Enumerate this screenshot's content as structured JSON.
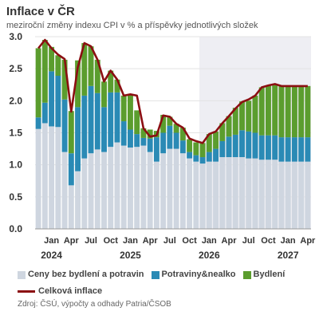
{
  "title": "Inflace v ČR",
  "subtitle": "meziroční změny indexu CPI v % a příspěvky jednotlivých složek",
  "source": "Zdroj: ČSÚ, výpočty a odhady Patria/ČSOB",
  "colors": {
    "ceny": "#cfd6e0",
    "potraviny": "#2a8ab5",
    "bydleni": "#5b9d2e",
    "celkova": "#8b0f12",
    "forecast_shade": "#eeeef3"
  },
  "chart_data": {
    "type": "bar",
    "stacked": true,
    "forecast_start": "2025-12",
    "ylim": [
      0,
      3.0
    ],
    "yticks": [
      "0.0",
      "0.5",
      "1.0",
      "1.5",
      "2.0",
      "2.5",
      "3.0"
    ],
    "grid": true,
    "legend_position": "bottom",
    "x": [
      "2023-11",
      "2023-12",
      "2024-01",
      "2024-02",
      "2024-03",
      "2024-04",
      "2024-05",
      "2024-06",
      "2024-07",
      "2024-08",
      "2024-09",
      "2024-10",
      "2024-11",
      "2024-12",
      "2025-01",
      "2025-02",
      "2025-03",
      "2025-04",
      "2025-05",
      "2025-06",
      "2025-07",
      "2025-08",
      "2025-09",
      "2025-10",
      "2025-11",
      "2025-12",
      "2026-01",
      "2026-02",
      "2026-03",
      "2026-04",
      "2026-05",
      "2026-06",
      "2026-07",
      "2026-08",
      "2026-09",
      "2026-10",
      "2026-11",
      "2026-12",
      "2027-01",
      "2027-02",
      "2027-03",
      "2027-04"
    ],
    "x_month_labels": [
      {
        "x": "2024-01",
        "label": "Jan"
      },
      {
        "x": "2024-04",
        "label": "Apr"
      },
      {
        "x": "2024-07",
        "label": "Jul"
      },
      {
        "x": "2024-10",
        "label": "Oct"
      },
      {
        "x": "2025-01",
        "label": "Jan"
      },
      {
        "x": "2025-04",
        "label": "Apr"
      },
      {
        "x": "2025-07",
        "label": "Jul"
      },
      {
        "x": "2025-10",
        "label": "Oct"
      },
      {
        "x": "2026-01",
        "label": "Jan"
      },
      {
        "x": "2026-04",
        "label": "Apr"
      },
      {
        "x": "2026-07",
        "label": "Jul"
      },
      {
        "x": "2026-10",
        "label": "Oct"
      },
      {
        "x": "2027-01",
        "label": "Jan"
      },
      {
        "x": "2027-04",
        "label": "Apr"
      }
    ],
    "x_year_labels": [
      {
        "x": "2024-01",
        "label": "2024"
      },
      {
        "x": "2025-01",
        "label": "2025"
      },
      {
        "x": "2026-01",
        "label": "2026"
      },
      {
        "x": "2027-01",
        "label": "2027"
      }
    ],
    "series": [
      {
        "name": "Ceny bez bydlení a potravin",
        "key": "ceny",
        "kind": "bar",
        "values": [
          1.56,
          1.65,
          1.6,
          1.59,
          1.2,
          0.68,
          0.9,
          1.1,
          1.18,
          1.24,
          1.2,
          1.28,
          1.35,
          1.3,
          1.27,
          1.28,
          1.3,
          1.2,
          1.05,
          1.18,
          1.25,
          1.25,
          1.18,
          1.1,
          1.05,
          1.02,
          1.05,
          1.05,
          1.12,
          1.12,
          1.12,
          1.12,
          1.1,
          1.1,
          1.08,
          1.08,
          1.08,
          1.05,
          1.05,
          1.05,
          1.05,
          1.05
        ]
      },
      {
        "name": "Potraviny&nealko",
        "key": "potraviny",
        "kind": "bar",
        "values": [
          0.18,
          0.32,
          0.86,
          0.8,
          0.82,
          0.5,
          1.0,
          0.98,
          1.05,
          0.88,
          0.7,
          0.85,
          0.78,
          0.38,
          0.28,
          0.2,
          0.12,
          0.21,
          0.38,
          0.32,
          0.36,
          0.25,
          0.2,
          0.1,
          0.1,
          0.1,
          0.15,
          0.2,
          0.25,
          0.32,
          0.35,
          0.42,
          0.42,
          0.4,
          0.38,
          0.38,
          0.38,
          0.38,
          0.38,
          0.38,
          0.38,
          0.38
        ]
      },
      {
        "name": "Bydlení",
        "key": "bydleni",
        "kind": "bar",
        "values": [
          1.08,
          0.98,
          0.38,
          0.32,
          0.62,
          0.66,
          0.73,
          0.82,
          0.62,
          0.52,
          0.4,
          0.34,
          0.2,
          0.4,
          0.55,
          0.37,
          0.15,
          0.14,
          0.1,
          0.28,
          0.14,
          0.14,
          0.2,
          0.2,
          0.2,
          0.22,
          0.28,
          0.27,
          0.28,
          0.32,
          0.42,
          0.45,
          0.48,
          0.58,
          0.75,
          0.78,
          0.8,
          0.8,
          0.8,
          0.8,
          0.8,
          0.8
        ]
      },
      {
        "name": "Celková inflace",
        "key": "celkova",
        "kind": "line",
        "values": [
          2.82,
          2.95,
          2.82,
          2.72,
          2.65,
          1.83,
          2.52,
          2.9,
          2.85,
          2.64,
          2.3,
          2.47,
          2.33,
          2.08,
          2.1,
          2.08,
          1.57,
          1.44,
          1.46,
          1.77,
          1.75,
          1.64,
          1.58,
          1.41,
          1.37,
          1.34,
          1.48,
          1.52,
          1.65,
          1.76,
          1.88,
          1.98,
          2.02,
          2.08,
          2.21,
          2.24,
          2.26,
          2.23,
          2.23,
          2.23,
          2.23,
          2.23
        ]
      }
    ]
  }
}
